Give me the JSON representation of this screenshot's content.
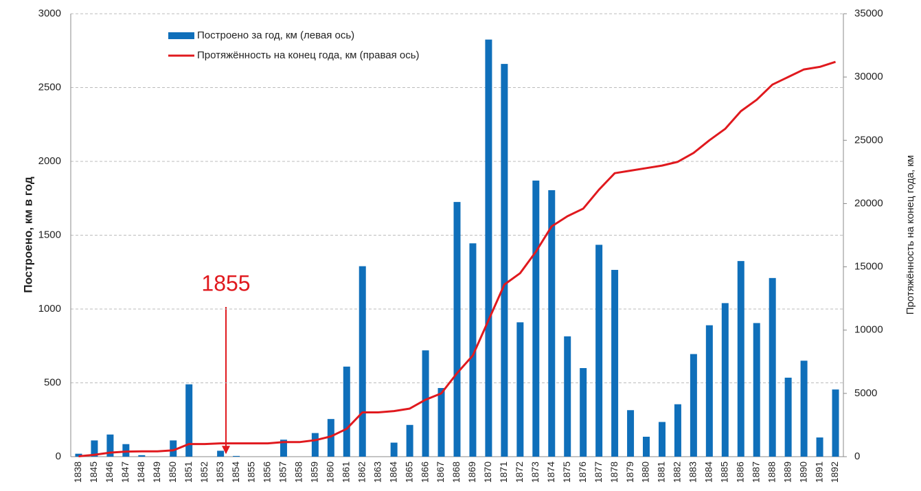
{
  "chart_data": {
    "type": "bar_line",
    "categories": [
      "1838",
      "1845",
      "1846",
      "1847",
      "1848",
      "1849",
      "1850",
      "1851",
      "1852",
      "1853",
      "1854",
      "1855",
      "1856",
      "1857",
      "1858",
      "1859",
      "1860",
      "1861",
      "1862",
      "1863",
      "1864",
      "1865",
      "1866",
      "1867",
      "1868",
      "1869",
      "1870",
      "1871",
      "1872",
      "1873",
      "1874",
      "1875",
      "1876",
      "1877",
      "1878",
      "1879",
      "1880",
      "1881",
      "1882",
      "1883",
      "1884",
      "1885",
      "1886",
      "1887",
      "1888",
      "1889",
      "1890",
      "1891",
      "1892"
    ],
    "series": [
      {
        "name": "Построено за год, км (левая ось)",
        "color": "#0f6fba",
        "type": "bar",
        "axis": "y",
        "values": [
          20,
          110,
          150,
          85,
          10,
          0,
          110,
          490,
          0,
          40,
          5,
          0,
          0,
          115,
          0,
          160,
          255,
          610,
          1290,
          0,
          95,
          215,
          720,
          465,
          1725,
          1445,
          2825,
          2660,
          910,
          1870,
          1805,
          815,
          600,
          1435,
          1265,
          315,
          135,
          235,
          355,
          695,
          890,
          1040,
          1325,
          905,
          1210,
          535,
          650,
          130,
          455
        ]
      },
      {
        "name": "Протяжённость на конец года, км (правая ось)",
        "color": "#e0191e",
        "type": "line",
        "axis": "y2",
        "values": [
          30,
          150,
          320,
          400,
          420,
          420,
          500,
          1000,
          1000,
          1050,
          1050,
          1050,
          1050,
          1150,
          1150,
          1300,
          1600,
          2200,
          3500,
          3500,
          3600,
          3800,
          4500,
          5000,
          6600,
          8000,
          10800,
          13600,
          14500,
          16200,
          18200,
          19000,
          19600,
          21100,
          22400,
          22600,
          22800,
          23000,
          23300,
          24000,
          25000,
          25900,
          27300,
          28200,
          29400,
          30000,
          30600,
          30800,
          31200
        ]
      }
    ],
    "y_label": "Построено, км в год",
    "y2_label": "Протяжённость на конец года, км",
    "annotation": "1855",
    "ylim": [
      0,
      3000
    ],
    "yticks": [
      0,
      500,
      1000,
      1500,
      2000,
      2500,
      3000
    ],
    "y2lim": [
      0,
      35000
    ],
    "y2ticks": [
      0,
      5000,
      10000,
      15000,
      20000,
      25000,
      30000,
      35000
    ],
    "grid": true
  }
}
